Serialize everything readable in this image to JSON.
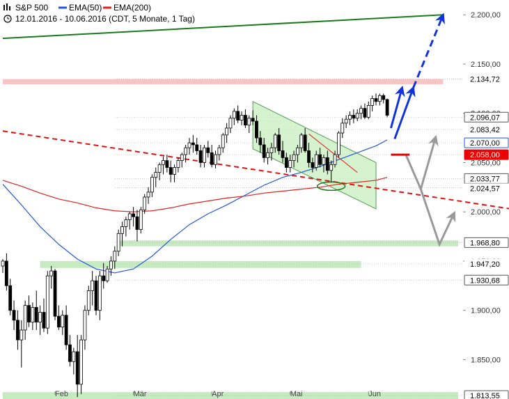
{
  "header": {
    "symbol": "S&P 500",
    "ema50_label": "EMA(50)",
    "ema200_label": "EMA(200)",
    "period": "12.01.2016 - 10.06.2016 (CDT, 5 Monate, 1 Tag)",
    "chart_icon": "bar-chart-icon",
    "clock_icon": "clock-icon"
  },
  "colors": {
    "ema50": "#2255dd",
    "ema200": "#dd2222",
    "up_candle": "#ffffff",
    "down_candle": "#000000",
    "support_zone": "#b8e6b0",
    "resistance_zone": "#f5b5b5",
    "channel_fill": "#c8f0c0",
    "trendline_green": "#1a7a1a",
    "trendline_red_dashed": "#dd1111",
    "projection_blue": "#1133dd",
    "projection_gray": "#999999",
    "badge_red": "#ee0000"
  },
  "chart_data": {
    "type": "candlestick",
    "title": "S&P 500",
    "y_axis_ticks": [
      "2.200,00",
      "2.150,00",
      "2.100,00",
      "2.050,00",
      "2.000,00",
      "1.950,00",
      "1.900,00",
      "1.850,00"
    ],
    "y_tick_values": [
      2200,
      2150,
      2100,
      2050,
      2000,
      1950,
      1900,
      1850
    ],
    "ylim": [
      1810,
      2215
    ],
    "x_axis_months": [
      "Feb",
      "Mär",
      "Apr",
      "Mai",
      "Jun"
    ],
    "x_month_days": [
      14,
      35,
      56,
      77,
      98
    ],
    "n_days": 104,
    "price_badges": [
      {
        "label": "2.134,72",
        "value": 2134.72,
        "style": "plain"
      },
      {
        "label": "2.096,07",
        "value": 2096.07,
        "style": "boxed"
      },
      {
        "label": "2.083,42",
        "value": 2083.42,
        "style": "plain"
      },
      {
        "label": "2.070,00",
        "value": 2070.0,
        "style": "blue"
      },
      {
        "label": "2.058,00",
        "value": 2058.0,
        "style": "red"
      },
      {
        "label": "2.033,77",
        "value": 2033.77,
        "style": "boxed"
      },
      {
        "label": "2.024,57",
        "value": 2024.57,
        "style": "plain"
      },
      {
        "label": "1.968,80",
        "value": 1968.8,
        "style": "boxed"
      },
      {
        "label": "1.947,20",
        "value": 1947.2,
        "style": "plain"
      },
      {
        "label": "1.930,68",
        "value": 1930.68,
        "style": "boxed"
      },
      {
        "label": "1.813,55",
        "value": 1813.55,
        "style": "boxed"
      }
    ],
    "zones": [
      {
        "type": "resistance",
        "low": 2129.5,
        "high": 2134.72,
        "from_day": 0,
        "to_day": 118
      },
      {
        "type": "support",
        "low": 1965,
        "high": 1971,
        "from_day": 31,
        "to_day": 122
      },
      {
        "type": "support",
        "low": 1943,
        "high": 1950,
        "from_day": 10,
        "to_day": 96
      },
      {
        "type": "support",
        "low": 1810,
        "high": 1817,
        "from_day": 0,
        "to_day": 122
      }
    ],
    "series": [
      {
        "name": "EMA(50)",
        "x": [
          0,
          5,
          10,
          15,
          20,
          25,
          30,
          35,
          40,
          45,
          50,
          55,
          60,
          65,
          70,
          75,
          80,
          85,
          90,
          95,
          100,
          103
        ],
        "y": [
          2028,
          2007,
          1985,
          1967,
          1952,
          1942,
          1938,
          1942,
          1955,
          1972,
          1987,
          1998,
          2007,
          2017,
          2027,
          2035,
          2040,
          2046,
          2053,
          2060,
          2067,
          2073
        ]
      },
      {
        "name": "EMA(200)",
        "x": [
          0,
          5,
          10,
          15,
          20,
          25,
          30,
          35,
          40,
          45,
          50,
          55,
          60,
          65,
          70,
          75,
          80,
          85,
          90,
          95,
          100,
          103
        ],
        "y": [
          2032,
          2026,
          2019,
          2013,
          2009,
          2004,
          2001,
          2000,
          2001,
          2004,
          2008,
          2011,
          2014,
          2016,
          2019,
          2021,
          2023,
          2025,
          2028,
          2030,
          2032,
          2035
        ]
      }
    ],
    "trendlines": [
      {
        "name": "long-term-up",
        "from": [
          0,
          2176
        ],
        "to": [
          118,
          2200
        ]
      },
      {
        "name": "long-term-down",
        "from": [
          0,
          2082
        ],
        "to": [
          136,
          2003
        ]
      },
      {
        "name": "channel-upper",
        "from": [
          67,
          2112
        ],
        "to": [
          100,
          2050
        ]
      },
      {
        "name": "channel-lower",
        "from": [
          67,
          2064
        ],
        "to": [
          100,
          2003
        ]
      },
      {
        "name": "short-red",
        "from": [
          82,
          2079
        ],
        "to": [
          95,
          2040
        ]
      }
    ],
    "projections": [
      {
        "name": "blue-solid",
        "points": [
          [
            104,
            2085
          ],
          [
            107,
            2126
          ]
        ]
      },
      {
        "name": "blue-solid-2",
        "points": [
          [
            105,
            2074
          ],
          [
            110,
            2126
          ]
        ]
      },
      {
        "name": "blue-dashed",
        "points": [
          [
            110,
            2126
          ],
          [
            118,
            2200
          ]
        ]
      },
      {
        "name": "gray-1",
        "points": [
          [
            108,
            2058
          ],
          [
            112,
            2023
          ],
          [
            116,
            2076
          ]
        ]
      },
      {
        "name": "gray-2",
        "points": [
          [
            112,
            2023
          ],
          [
            117,
            1967
          ],
          [
            121,
            1999
          ]
        ]
      }
    ],
    "candles": [
      [
        0,
        1945,
        1952,
        1938,
        1950
      ],
      [
        1,
        1950,
        1958,
        1920,
        1925
      ],
      [
        2,
        1925,
        1932,
        1895,
        1900
      ],
      [
        3,
        1900,
        1910,
        1880,
        1890
      ],
      [
        4,
        1890,
        1900,
        1860,
        1870
      ],
      [
        5,
        1870,
        1890,
        1842,
        1880
      ],
      [
        6,
        1880,
        1910,
        1870,
        1905
      ],
      [
        7,
        1905,
        1915,
        1883,
        1888
      ],
      [
        8,
        1888,
        1908,
        1880,
        1903
      ],
      [
        9,
        1903,
        1920,
        1880,
        1888
      ],
      [
        10,
        1888,
        1905,
        1875,
        1898
      ],
      [
        11,
        1898,
        1912,
        1878,
        1882
      ],
      [
        12,
        1882,
        1940,
        1876,
        1935
      ],
      [
        13,
        1935,
        1945,
        1922,
        1940
      ],
      [
        14,
        1940,
        1942,
        1890,
        1894
      ],
      [
        15,
        1894,
        1905,
        1880,
        1883
      ],
      [
        16,
        1883,
        1900,
        1875,
        1895
      ],
      [
        17,
        1895,
        1905,
        1860,
        1865
      ],
      [
        18,
        1865,
        1875,
        1843,
        1848
      ],
      [
        19,
        1848,
        1862,
        1835,
        1858
      ],
      [
        20,
        1858,
        1875,
        1812,
        1825
      ],
      [
        21,
        1825,
        1875,
        1815,
        1870
      ],
      [
        22,
        1870,
        1905,
        1860,
        1900
      ],
      [
        23,
        1900,
        1925,
        1895,
        1920
      ],
      [
        24,
        1920,
        1940,
        1905,
        1930
      ],
      [
        25,
        1930,
        1935,
        1895,
        1900
      ],
      [
        26,
        1900,
        1940,
        1890,
        1935
      ],
      [
        27,
        1935,
        1948,
        1922,
        1930
      ],
      [
        28,
        1930,
        1945,
        1928,
        1942
      ],
      [
        29,
        1942,
        1955,
        1935,
        1950
      ],
      [
        30,
        1950,
        1965,
        1942,
        1960
      ],
      [
        31,
        1960,
        1982,
        1955,
        1978
      ],
      [
        32,
        1978,
        1990,
        1965,
        1985
      ],
      [
        33,
        1985,
        1995,
        1975,
        1992
      ],
      [
        34,
        1992,
        2000,
        1982,
        1998
      ],
      [
        35,
        1998,
        2005,
        1985,
        1995
      ],
      [
        36,
        1995,
        2002,
        1970,
        1982
      ],
      [
        37,
        1982,
        2005,
        1978,
        2002
      ],
      [
        38,
        2002,
        2018,
        1998,
        2015
      ],
      [
        39,
        2015,
        2025,
        2008,
        2020
      ],
      [
        40,
        2020,
        2038,
        2015,
        2035
      ],
      [
        41,
        2035,
        2045,
        2025,
        2040
      ],
      [
        42,
        2040,
        2050,
        2032,
        2048
      ],
      [
        43,
        2048,
        2056,
        2038,
        2052
      ],
      [
        44,
        2052,
        2058,
        2040,
        2045
      ],
      [
        45,
        2045,
        2052,
        2030,
        2038
      ],
      [
        46,
        2038,
        2048,
        2030,
        2045
      ],
      [
        47,
        2045,
        2055,
        2040,
        2052
      ],
      [
        48,
        2052,
        2060,
        2045,
        2058
      ],
      [
        49,
        2058,
        2068,
        2050,
        2065
      ],
      [
        50,
        2065,
        2075,
        2058,
        2070
      ],
      [
        51,
        2070,
        2078,
        2060,
        2068
      ],
      [
        52,
        2068,
        2075,
        2058,
        2062
      ],
      [
        53,
        2062,
        2068,
        2045,
        2050
      ],
      [
        54,
        2050,
        2068,
        2045,
        2065
      ],
      [
        55,
        2065,
        2072,
        2055,
        2060
      ],
      [
        56,
        2060,
        2068,
        2045,
        2048
      ],
      [
        57,
        2048,
        2062,
        2044,
        2058
      ],
      [
        58,
        2058,
        2068,
        2052,
        2065
      ],
      [
        59,
        2065,
        2080,
        2060,
        2078
      ],
      [
        60,
        2078,
        2090,
        2070,
        2085
      ],
      [
        61,
        2085,
        2098,
        2080,
        2095
      ],
      [
        62,
        2095,
        2105,
        2088,
        2102
      ],
      [
        63,
        2102,
        2108,
        2090,
        2093
      ],
      [
        64,
        2093,
        2102,
        2088,
        2098
      ],
      [
        65,
        2098,
        2104,
        2085,
        2088
      ],
      [
        66,
        2088,
        2098,
        2080,
        2095
      ],
      [
        67,
        2095,
        2103,
        2088,
        2092
      ],
      [
        68,
        2092,
        2098,
        2070,
        2075
      ],
      [
        69,
        2075,
        2082,
        2060,
        2068
      ],
      [
        70,
        2068,
        2075,
        2050,
        2055
      ],
      [
        71,
        2055,
        2065,
        2048,
        2060
      ],
      [
        72,
        2060,
        2070,
        2052,
        2065
      ],
      [
        73,
        2065,
        2080,
        2060,
        2078
      ],
      [
        74,
        2078,
        2085,
        2058,
        2062
      ],
      [
        75,
        2062,
        2072,
        2050,
        2055
      ],
      [
        76,
        2055,
        2060,
        2040,
        2045
      ],
      [
        77,
        2045,
        2058,
        2040,
        2052
      ],
      [
        78,
        2052,
        2062,
        2045,
        2058
      ],
      [
        79,
        2058,
        2068,
        2050,
        2065
      ],
      [
        80,
        2065,
        2080,
        2060,
        2078
      ],
      [
        81,
        2078,
        2085,
        2060,
        2062
      ],
      [
        82,
        2062,
        2070,
        2045,
        2050
      ],
      [
        83,
        2050,
        2055,
        2040,
        2045
      ],
      [
        84,
        2045,
        2062,
        2042,
        2058
      ],
      [
        85,
        2058,
        2065,
        2045,
        2048
      ],
      [
        86,
        2048,
        2058,
        2040,
        2055
      ],
      [
        87,
        2055,
        2062,
        2038,
        2042
      ],
      [
        88,
        2042,
        2052,
        2030,
        2048
      ],
      [
        89,
        2048,
        2062,
        2045,
        2058
      ],
      [
        90,
        2058,
        2082,
        2055,
        2080
      ],
      [
        91,
        2080,
        2095,
        2075,
        2090
      ],
      [
        92,
        2090,
        2098,
        2085,
        2094
      ],
      [
        93,
        2094,
        2102,
        2088,
        2098
      ],
      [
        94,
        2098,
        2104,
        2090,
        2095
      ],
      [
        95,
        2095,
        2104,
        2092,
        2100
      ],
      [
        96,
        2100,
        2108,
        2094,
        2105
      ],
      [
        97,
        2105,
        2110,
        2094,
        2096
      ],
      [
        98,
        2096,
        2112,
        2094,
        2108
      ],
      [
        99,
        2108,
        2118,
        2102,
        2115
      ],
      [
        100,
        2115,
        2120,
        2108,
        2112
      ],
      [
        101,
        2112,
        2120,
        2108,
        2118
      ],
      [
        102,
        2118,
        2120,
        2110,
        2114
      ],
      [
        103,
        2114,
        2115,
        2096,
        2098
      ]
    ]
  }
}
